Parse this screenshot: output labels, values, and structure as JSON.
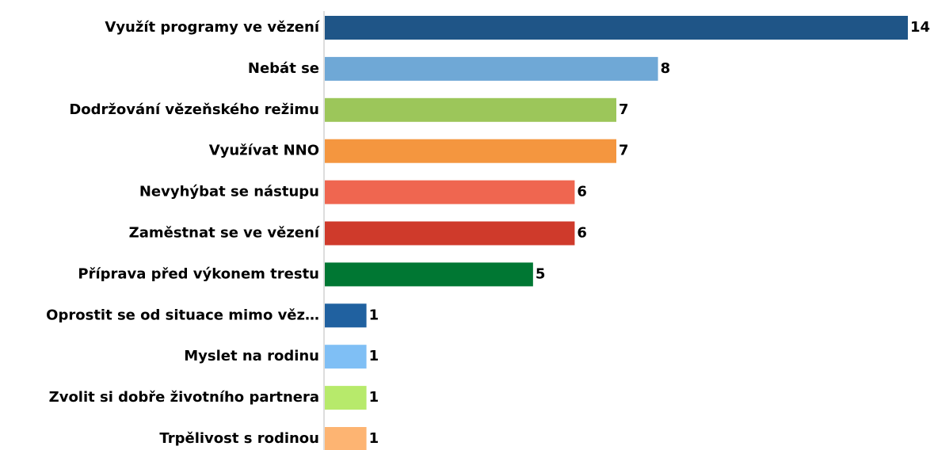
{
  "chart_data": {
    "type": "bar",
    "orientation": "horizontal",
    "categories": [
      "Využít programy ve vězení",
      "Nebát se",
      "Dodržování vězeňského režimu",
      "Využívat NNO",
      "Nevyhýbat se nástupu",
      "Zaměstnat se ve vězení",
      "Příprava před výkonem trestu",
      "Oprostit se od situace mimo věz…",
      "Myslet na rodinu",
      "Zvolit si dobře životního partnera",
      "Trpělivost s rodinou"
    ],
    "values": [
      14,
      8,
      7,
      7,
      6,
      6,
      5,
      1,
      1,
      1,
      1
    ],
    "colors": [
      "#1f5587",
      "#6fa8d6",
      "#9cc65a",
      "#f4963f",
      "#ef6650",
      "#cf3a2b",
      "#007733",
      "#2061a0",
      "#7fbff5",
      "#b7ea6b",
      "#fdb472"
    ],
    "xlim": [
      0,
      14
    ]
  }
}
